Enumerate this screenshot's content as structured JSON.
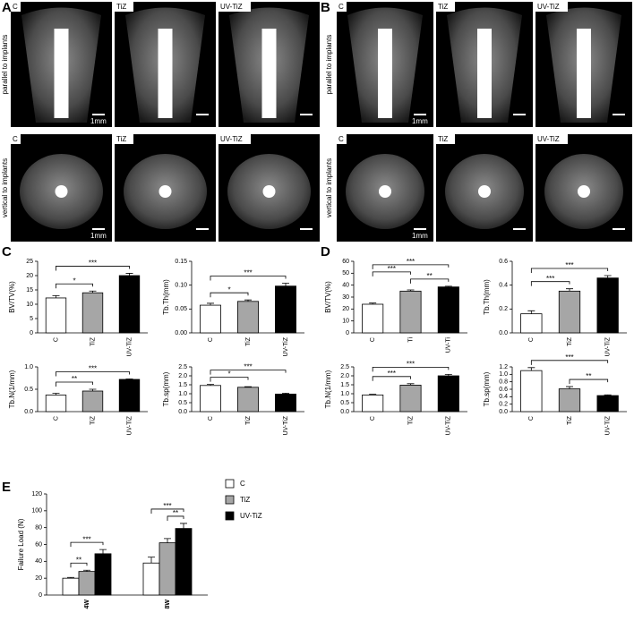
{
  "panel_labels": [
    "A",
    "B",
    "C",
    "D",
    "E"
  ],
  "image_panels": [
    {
      "rows": [
        {
          "orientation": "parallel to implants",
          "tiles": [
            "C",
            "TiZ",
            "UV-TiZ"
          ],
          "scale_label": "1mm"
        },
        {
          "orientation": "vertical to implants",
          "tiles": [
            "C",
            "TiZ",
            "UV-TiZ"
          ],
          "scale_label": "1mm"
        }
      ]
    },
    {
      "rows": [
        {
          "orientation": "parallel to implants",
          "tiles": [
            "C",
            "TiZ",
            "UV-TiZ"
          ],
          "scale_label": "1mm"
        },
        {
          "orientation": "vertical to implants",
          "tiles": [
            "C",
            "TiZ",
            "UV-TiZ"
          ],
          "scale_label": "1mm"
        }
      ]
    }
  ],
  "chart_data": [
    {
      "type": "bar",
      "y_label": "BV/TV(%)",
      "categories": [
        "C",
        "TiZ",
        "UV-TiZ"
      ],
      "colors": [
        "#ffffff",
        "#a6a6a6",
        "#000000"
      ],
      "values": [
        12.2,
        14,
        20
      ],
      "errors": [
        0.8,
        0.6,
        0.8
      ],
      "ylim": [
        0,
        25
      ],
      "yticks": [
        0,
        5,
        10,
        15,
        20,
        25
      ],
      "significance": [
        {
          "pair": [
            0,
            1
          ],
          "label": "*"
        },
        {
          "pair": [
            0,
            2
          ],
          "label": "***"
        }
      ]
    },
    {
      "type": "bar",
      "y_label": "Tb.Th(mm)",
      "categories": [
        "C",
        "TiZ",
        "UV-TiZ"
      ],
      "colors": [
        "#ffffff",
        "#a6a6a6",
        "#000000"
      ],
      "values": [
        0.058,
        0.066,
        0.098
      ],
      "errors": [
        0.004,
        0.003,
        0.006
      ],
      "ylim": [
        0,
        0.15
      ],
      "yticks": [
        {
          "value": 0,
          "label": "0.00"
        },
        0.05,
        {
          "value": 0.1,
          "label": "0.10"
        },
        0.15
      ],
      "significance": [
        {
          "pair": [
            0,
            1
          ],
          "label": "*"
        },
        {
          "pair": [
            0,
            2
          ],
          "label": "***"
        }
      ]
    },
    {
      "type": "bar",
      "y_label": "Tb.N(1/mm)",
      "categories": [
        "C",
        "TiZ",
        "UV-TiZ"
      ],
      "colors": [
        "#ffffff",
        "#a6a6a6",
        "#000000"
      ],
      "values": [
        0.37,
        0.46,
        0.72
      ],
      "errors": [
        0.04,
        0.04,
        0.01
      ],
      "ylim": [
        0,
        1
      ],
      "yticks": [
        {
          "value": 0,
          "label": "0.0"
        },
        0.5,
        {
          "value": 1,
          "label": "1.0"
        }
      ],
      "significance": [
        {
          "pair": [
            0,
            1
          ],
          "label": "**"
        },
        {
          "pair": [
            0,
            2
          ],
          "label": "***"
        }
      ]
    },
    {
      "type": "bar",
      "y_label": "Tb.sp(mm)",
      "categories": [
        "C",
        "TiZ",
        "UV-TiZ"
      ],
      "colors": [
        "#ffffff",
        "#a6a6a6",
        "#000000"
      ],
      "values": [
        1.46,
        1.36,
        0.98
      ],
      "errors": [
        0.06,
        0.03,
        0.05
      ],
      "ylim": [
        0,
        2.5
      ],
      "yticks": [
        {
          "value": 0,
          "label": "0.0"
        },
        0.5,
        {
          "value": 1,
          "label": "1.0"
        },
        1.5,
        {
          "value": 2,
          "label": "2.0"
        },
        2.5
      ],
      "significance": [
        {
          "pair": [
            0,
            1
          ],
          "label": "*"
        },
        {
          "pair": [
            0,
            2
          ],
          "label": "***"
        }
      ]
    },
    {
      "type": "bar",
      "y_label": "BV/TV(%)",
      "categories": [
        "C",
        "Ti",
        "UV-Ti"
      ],
      "colors": [
        "#ffffff",
        "#a6a6a6",
        "#000000"
      ],
      "values": [
        24,
        35,
        38.5
      ],
      "errors": [
        1,
        1,
        0.6
      ],
      "ylim": [
        0,
        60
      ],
      "yticks": [
        0,
        10,
        20,
        30,
        40,
        50,
        60
      ],
      "significance": [
        {
          "pair": [
            1,
            2
          ],
          "label": "**"
        },
        {
          "pair": [
            0,
            1
          ],
          "label": "***"
        },
        {
          "pair": [
            0,
            2
          ],
          "label": "***"
        }
      ]
    },
    {
      "type": "bar",
      "y_label": "Tb.Th(mm)",
      "categories": [
        "C",
        "TiZ",
        "UV-TiZ"
      ],
      "colors": [
        "#ffffff",
        "#a6a6a6",
        "#000000"
      ],
      "values": [
        0.16,
        0.35,
        0.46
      ],
      "errors": [
        0.025,
        0.02,
        0.02
      ],
      "ylim": [
        0,
        0.6
      ],
      "yticks": [
        {
          "value": 0,
          "label": "0.0"
        },
        0.2,
        0.4,
        0.6
      ],
      "significance": [
        {
          "pair": [
            0,
            1
          ],
          "label": "***"
        },
        {
          "pair": [
            0,
            2
          ],
          "label": "***"
        }
      ]
    },
    {
      "type": "bar",
      "y_label": "Tb.N(1/mm)",
      "categories": [
        "C",
        "TiZ",
        "UV-TiZ"
      ],
      "colors": [
        "#ffffff",
        "#a6a6a6",
        "#000000"
      ],
      "values": [
        0.93,
        1.48,
        2.0
      ],
      "errors": [
        0.04,
        0.08,
        0.08
      ],
      "ylim": [
        0,
        2.5
      ],
      "yticks": [
        {
          "value": 0,
          "label": "0.0"
        },
        0.5,
        {
          "value": 1,
          "label": "1.0"
        },
        1.5,
        {
          "value": 2,
          "label": "2.0"
        },
        2.5
      ],
      "significance": [
        {
          "pair": [
            0,
            1
          ],
          "label": "***"
        },
        {
          "pair": [
            0,
            2
          ],
          "label": "***"
        }
      ]
    },
    {
      "type": "bar",
      "y_label": "Tb.sp(mm)",
      "categories": [
        "C",
        "TiZ",
        "UV-TiZ"
      ],
      "colors": [
        "#ffffff",
        "#a6a6a6",
        "#000000"
      ],
      "values": [
        1.1,
        0.61,
        0.43
      ],
      "errors": [
        0.08,
        0.06,
        0.02
      ],
      "ylim": [
        0,
        1.2
      ],
      "yticks": [
        {
          "value": 0,
          "label": "0.0"
        },
        0.2,
        0.4,
        0.6,
        0.8,
        {
          "value": 1,
          "label": "1.0"
        },
        1.2
      ],
      "significance": [
        {
          "pair": [
            1,
            2
          ],
          "label": "**"
        },
        {
          "pair": [
            0,
            2
          ],
          "label": "***"
        }
      ]
    },
    {
      "type": "grouped_bar",
      "y_label": "Failure Load (N)",
      "categories": [
        "4W",
        "8W"
      ],
      "series": [
        {
          "name": "C",
          "color": "#ffffff",
          "values": [
            20,
            38
          ],
          "errors": [
            1,
            7
          ]
        },
        {
          "name": "TiZ",
          "color": "#a6a6a6",
          "values": [
            28,
            62
          ],
          "errors": [
            1.5,
            5
          ]
        },
        {
          "name": "UV-TiZ",
          "color": "#000000",
          "values": [
            49,
            79
          ],
          "errors": [
            5,
            6
          ]
        }
      ],
      "ylim": [
        0,
        120
      ],
      "yticks": [
        0,
        20,
        40,
        60,
        80,
        100,
        120
      ],
      "significance": [
        {
          "group": 0,
          "pair": [
            0,
            1
          ],
          "label": "**"
        },
        {
          "group": 0,
          "pair": [
            0,
            2
          ],
          "label": "***"
        },
        {
          "group": 1,
          "pair": [
            1,
            2
          ],
          "label": "**"
        },
        {
          "group": 1,
          "pair": [
            0,
            2
          ],
          "label": "***"
        }
      ]
    }
  ]
}
